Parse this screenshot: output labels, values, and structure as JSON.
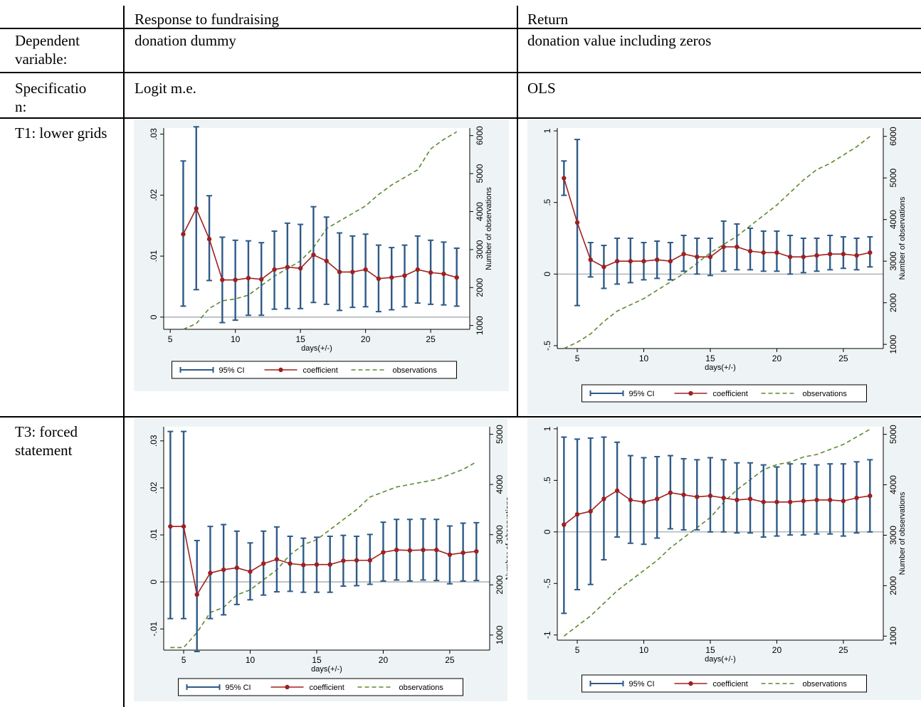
{
  "table": {
    "header": {
      "col1": "",
      "col2": "Response to fundraising",
      "col3": "Return"
    },
    "rows": [
      {
        "label": "Dependent variable:",
        "col2": "donation dummy",
        "col3": "donation value including zeros"
      },
      {
        "label": "Specification:",
        "col2": "Logit m.e.",
        "col3": "OLS"
      },
      {
        "label": "T1: lower grids"
      },
      {
        "label": "T3: forced statement"
      }
    ]
  },
  "colors": {
    "ci": "#2e5a87",
    "coefficient": "#a02020",
    "observations": "#5a8a30",
    "panel_background": "#eef4f5",
    "plot_background": "#ffffff",
    "axis": "#000000"
  },
  "chart_data": [
    {
      "type": "line",
      "row": "T1: lower grids",
      "column": "Response to fundraising",
      "xlabel": "days(+/-)",
      "ylabel": "",
      "y2label": "Number of observations",
      "xlim": [
        4.5,
        28
      ],
      "ylim": [
        -0.002,
        0.031
      ],
      "y2lim": [
        900,
        6200
      ],
      "xticks": [
        5,
        10,
        15,
        20,
        25
      ],
      "yticks": [
        0,
        0.01,
        0.02,
        0.03
      ],
      "yticklabels": [
        "0",
        ".01",
        ".02",
        ".03"
      ],
      "y2ticks": [
        1000,
        2000,
        3000,
        4000,
        5000,
        6000
      ],
      "legend": [
        "95% CI",
        "coefficient",
        "observations"
      ],
      "x": [
        6,
        7,
        8,
        9,
        10,
        11,
        12,
        13,
        14,
        15,
        16,
        17,
        18,
        19,
        20,
        21,
        22,
        23,
        24,
        25,
        26,
        27
      ],
      "coefficient": [
        0.0136,
        0.0178,
        0.0128,
        0.0061,
        0.0061,
        0.0064,
        0.0062,
        0.0078,
        0.0082,
        0.008,
        0.0102,
        0.0092,
        0.0074,
        0.0074,
        0.0078,
        0.0063,
        0.0065,
        0.0068,
        0.0078,
        0.0073,
        0.0071,
        0.0065
      ],
      "ci_low": [
        0.0018,
        0.0045,
        0.006,
        -0.0009,
        -0.0005,
        0.0003,
        0.0003,
        0.0013,
        0.0014,
        0.0014,
        0.0024,
        0.0021,
        0.0011,
        0.0016,
        0.0017,
        0.0009,
        0.0012,
        0.0017,
        0.0023,
        0.0021,
        0.002,
        0.0018
      ],
      "ci_high": [
        0.0256,
        0.0312,
        0.0199,
        0.0131,
        0.0126,
        0.0125,
        0.0122,
        0.0141,
        0.0154,
        0.0152,
        0.0181,
        0.0164,
        0.0138,
        0.0133,
        0.0136,
        0.0118,
        0.0114,
        0.0118,
        0.0133,
        0.0126,
        0.0123,
        0.0113
      ],
      "observations": [
        900,
        1050,
        1450,
        1650,
        1700,
        1800,
        2050,
        2300,
        2500,
        2700,
        3050,
        3550,
        3750,
        3950,
        4150,
        4450,
        4700,
        4900,
        5100,
        5650,
        5900,
        6100
      ]
    },
    {
      "type": "line",
      "row": "T1: lower grids",
      "column": "Return",
      "xlabel": "days(+/-)",
      "ylabel": "",
      "y2label": "Number of observations",
      "xlim": [
        3.5,
        28
      ],
      "ylim": [
        -0.52,
        1.02
      ],
      "y2lim": [
        900,
        6200
      ],
      "xticks": [
        5,
        10,
        15,
        20,
        25
      ],
      "yticks": [
        -0.5,
        0,
        0.5,
        1
      ],
      "yticklabels": [
        "-.5",
        "0",
        ".5",
        "1"
      ],
      "y2ticks": [
        1000,
        2000,
        3000,
        4000,
        5000,
        6000
      ],
      "legend": [
        "95% CI",
        "coefficient",
        "observations"
      ],
      "x": [
        4,
        5,
        6,
        7,
        8,
        9,
        10,
        11,
        12,
        13,
        14,
        15,
        16,
        17,
        18,
        19,
        20,
        21,
        22,
        23,
        24,
        25,
        26,
        27
      ],
      "coefficient": [
        0.67,
        0.36,
        0.1,
        0.05,
        0.09,
        0.09,
        0.09,
        0.1,
        0.09,
        0.14,
        0.12,
        0.12,
        0.19,
        0.19,
        0.16,
        0.15,
        0.15,
        0.12,
        0.12,
        0.13,
        0.14,
        0.14,
        0.13,
        0.15
      ],
      "ci_low": [
        0.55,
        -0.22,
        -0.02,
        -0.1,
        -0.07,
        -0.06,
        -0.04,
        -0.03,
        -0.04,
        0.02,
        0.0,
        -0.01,
        0.02,
        0.03,
        0.03,
        0.02,
        0.02,
        0.0,
        0.01,
        0.02,
        0.03,
        0.04,
        0.03,
        0.05
      ],
      "ci_high": [
        0.79,
        0.94,
        0.22,
        0.2,
        0.25,
        0.25,
        0.22,
        0.23,
        0.22,
        0.27,
        0.25,
        0.25,
        0.37,
        0.35,
        0.32,
        0.3,
        0.3,
        0.27,
        0.25,
        0.25,
        0.27,
        0.26,
        0.25,
        0.26
      ],
      "observations": [
        900,
        1050,
        1250,
        1550,
        1800,
        1950,
        2100,
        2300,
        2500,
        2700,
        2950,
        3200,
        3400,
        3600,
        3850,
        4100,
        4350,
        4650,
        4950,
        5200,
        5350,
        5550,
        5750,
        6000
      ]
    },
    {
      "type": "line",
      "row": "T3: forced statement",
      "column": "Response to fundraising",
      "xlabel": "days(+/-)",
      "ylabel": "",
      "y2label": "Number of observations",
      "xlim": [
        3.5,
        28
      ],
      "ylim": [
        -0.0145,
        0.033
      ],
      "y2lim": [
        700,
        5150
      ],
      "xticks": [
        5,
        10,
        15,
        20,
        25
      ],
      "yticks": [
        -0.01,
        0,
        0.01,
        0.02,
        0.03
      ],
      "yticklabels": [
        "-.01",
        "0",
        ".01",
        ".02",
        ".03"
      ],
      "y2ticks": [
        1000,
        2000,
        3000,
        4000,
        5000
      ],
      "legend": [
        "95% CI",
        "coefficient",
        "observations"
      ],
      "x": [
        4,
        5,
        6,
        7,
        8,
        9,
        10,
        11,
        12,
        13,
        14,
        15,
        16,
        17,
        18,
        19,
        20,
        21,
        22,
        23,
        24,
        25,
        26,
        27
      ],
      "coefficient": [
        0.0118,
        0.0118,
        -0.0027,
        0.0019,
        0.0026,
        0.003,
        0.0022,
        0.0039,
        0.0048,
        0.0039,
        0.0036,
        0.0037,
        0.0037,
        0.0045,
        0.0046,
        0.0046,
        0.0063,
        0.0068,
        0.0067,
        0.0068,
        0.0068,
        0.0058,
        0.0062,
        0.0065
      ],
      "ci_low": [
        -0.0078,
        -0.0078,
        -0.0148,
        -0.0078,
        -0.007,
        -0.0048,
        -0.0038,
        -0.0028,
        -0.0021,
        -0.002,
        -0.0022,
        -0.0022,
        -0.0022,
        -0.0009,
        -0.0008,
        -0.0005,
        0.0002,
        0.0004,
        0.0002,
        0.0004,
        0.0003,
        -0.0004,
        0.0002,
        0.0003
      ],
      "ci_high": [
        0.032,
        0.032,
        0.0088,
        0.0118,
        0.0122,
        0.0108,
        0.0083,
        0.0108,
        0.0117,
        0.0097,
        0.0093,
        0.0095,
        0.0097,
        0.0099,
        0.0097,
        0.0101,
        0.0127,
        0.0133,
        0.0133,
        0.0134,
        0.0133,
        0.0119,
        0.0125,
        0.0126
      ],
      "observations": [
        750,
        750,
        1050,
        1450,
        1550,
        1800,
        1900,
        2100,
        2300,
        2600,
        2800,
        2900,
        3100,
        3300,
        3500,
        3750,
        3850,
        3950,
        4000,
        4050,
        4100,
        4200,
        4300,
        4450
      ]
    },
    {
      "type": "line",
      "row": "T3: forced statement",
      "column": "Return",
      "xlabel": "days(+/-)",
      "ylabel": "",
      "y2label": "Number of observations",
      "xlim": [
        3.5,
        28
      ],
      "ylim": [
        -1.05,
        1.02
      ],
      "y2lim": [
        920,
        5150
      ],
      "xticks": [
        5,
        10,
        15,
        20,
        25
      ],
      "yticks": [
        -1,
        -0.5,
        0,
        0.5,
        1
      ],
      "yticklabels": [
        "-1",
        "-.5",
        "0",
        ".5",
        "1"
      ],
      "y2ticks": [
        1000,
        2000,
        3000,
        4000,
        5000
      ],
      "legend": [
        "95% CI",
        "coefficient",
        "observations"
      ],
      "x": [
        4,
        5,
        6,
        7,
        8,
        9,
        10,
        11,
        12,
        13,
        14,
        15,
        16,
        17,
        18,
        19,
        20,
        21,
        22,
        23,
        24,
        25,
        26,
        27
      ],
      "coefficient": [
        0.07,
        0.17,
        0.2,
        0.32,
        0.4,
        0.31,
        0.29,
        0.32,
        0.38,
        0.36,
        0.34,
        0.35,
        0.33,
        0.31,
        0.32,
        0.29,
        0.29,
        0.29,
        0.3,
        0.31,
        0.31,
        0.3,
        0.33,
        0.35
      ],
      "ci_low": [
        -0.79,
        -0.56,
        -0.51,
        -0.27,
        -0.05,
        -0.11,
        -0.12,
        -0.06,
        0.03,
        0.02,
        0.02,
        0.0,
        0.0,
        -0.01,
        -0.01,
        -0.05,
        -0.04,
        -0.03,
        -0.03,
        -0.02,
        -0.02,
        -0.04,
        -0.01,
        0.0
      ],
      "ci_high": [
        0.92,
        0.9,
        0.91,
        0.92,
        0.87,
        0.74,
        0.72,
        0.73,
        0.74,
        0.71,
        0.7,
        0.72,
        0.7,
        0.67,
        0.67,
        0.65,
        0.63,
        0.66,
        0.66,
        0.65,
        0.66,
        0.66,
        0.68,
        0.7
      ],
      "observations": [
        1000,
        1200,
        1400,
        1650,
        1900,
        2100,
        2300,
        2500,
        2750,
        2950,
        3150,
        3350,
        3650,
        3900,
        4100,
        4300,
        4400,
        4450,
        4550,
        4600,
        4700,
        4800,
        4950,
        5100
      ]
    }
  ]
}
